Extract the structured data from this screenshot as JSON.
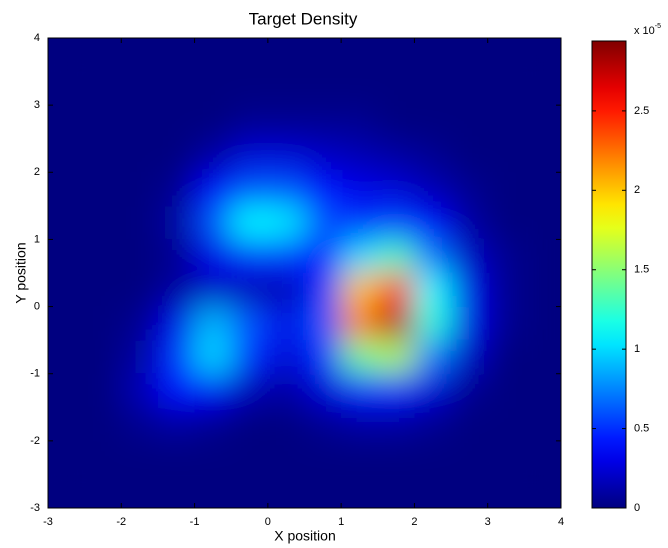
{
  "chart_data": {
    "type": "heatmap",
    "title": "Target Density",
    "xlabel": "X position",
    "ylabel": "Y position",
    "x": [
      -2.75,
      -2.25,
      -1.75,
      -1.25,
      -0.75,
      -0.25,
      0.25,
      0.75,
      1.25,
      1.75,
      2.25,
      2.75,
      3.25,
      3.75
    ],
    "y": [
      3.75,
      3.25,
      2.75,
      2.25,
      1.75,
      1.25,
      0.75,
      0.25,
      -0.25,
      -0.75,
      -1.25,
      -1.75,
      -2.25,
      -2.75
    ],
    "values": [
      [
        0,
        0,
        0,
        0,
        0,
        0,
        0,
        0,
        0,
        0,
        0,
        0,
        0,
        0
      ],
      [
        0,
        0,
        0,
        0,
        0,
        0,
        0,
        0,
        0,
        0,
        0,
        0,
        0,
        0
      ],
      [
        0,
        0,
        0,
        0,
        0,
        0.05,
        0.05,
        0.05,
        0.05,
        0,
        0,
        0,
        0,
        0
      ],
      [
        0,
        0,
        0,
        0,
        0.1,
        0.25,
        0.25,
        0.2,
        0.15,
        0.1,
        0.05,
        0,
        0,
        0
      ],
      [
        0,
        0,
        0,
        0.05,
        0.35,
        0.6,
        0.6,
        0.4,
        0.3,
        0.25,
        0.15,
        0.05,
        0,
        0
      ],
      [
        0,
        0,
        0,
        0.1,
        0.6,
        1.1,
        1.05,
        0.6,
        0.5,
        0.55,
        0.35,
        0.1,
        0,
        0
      ],
      [
        0,
        0,
        0,
        0.05,
        0.3,
        0.5,
        0.5,
        0.4,
        1.0,
        1.3,
        0.7,
        0.2,
        0.05,
        0
      ],
      [
        0,
        0,
        0,
        0.1,
        0.2,
        0.15,
        0.15,
        0.5,
        2.0,
        2.5,
        1.1,
        0.3,
        0.05,
        0
      ],
      [
        0,
        0,
        0.05,
        0.3,
        0.9,
        0.6,
        0.3,
        0.6,
        2.2,
        2.8,
        1.2,
        0.3,
        0.05,
        0
      ],
      [
        0,
        0,
        0.1,
        0.5,
        1.0,
        0.5,
        0.25,
        0.5,
        1.4,
        1.6,
        0.7,
        0.2,
        0,
        0
      ],
      [
        0,
        0,
        0.15,
        0.4,
        0.35,
        0.15,
        0.1,
        0.25,
        0.45,
        0.45,
        0.25,
        0.05,
        0,
        0
      ],
      [
        0,
        0,
        0.05,
        0.1,
        0.05,
        0,
        0,
        0.05,
        0.1,
        0.1,
        0.05,
        0,
        0,
        0
      ],
      [
        0,
        0,
        0,
        0,
        0,
        0,
        0,
        0,
        0,
        0,
        0,
        0,
        0,
        0
      ],
      [
        0,
        0,
        0,
        0,
        0,
        0,
        0,
        0,
        0,
        0,
        0,
        0,
        0,
        0
      ]
    ],
    "xlim": [
      -3,
      4
    ],
    "ylim": [
      -3,
      4
    ],
    "xticks": [
      -3,
      -2,
      -1,
      0,
      1,
      2,
      3,
      4
    ],
    "yticks": [
      -3,
      -2,
      -1,
      0,
      1,
      2,
      3,
      4
    ],
    "colormap": "jet",
    "clim": [
      0,
      2.94
    ],
    "cbarticks": [
      0,
      0.5,
      1,
      1.5,
      2,
      2.5
    ],
    "cbar_multiplier": {
      "base": "x 10",
      "exponent": "-5"
    }
  }
}
